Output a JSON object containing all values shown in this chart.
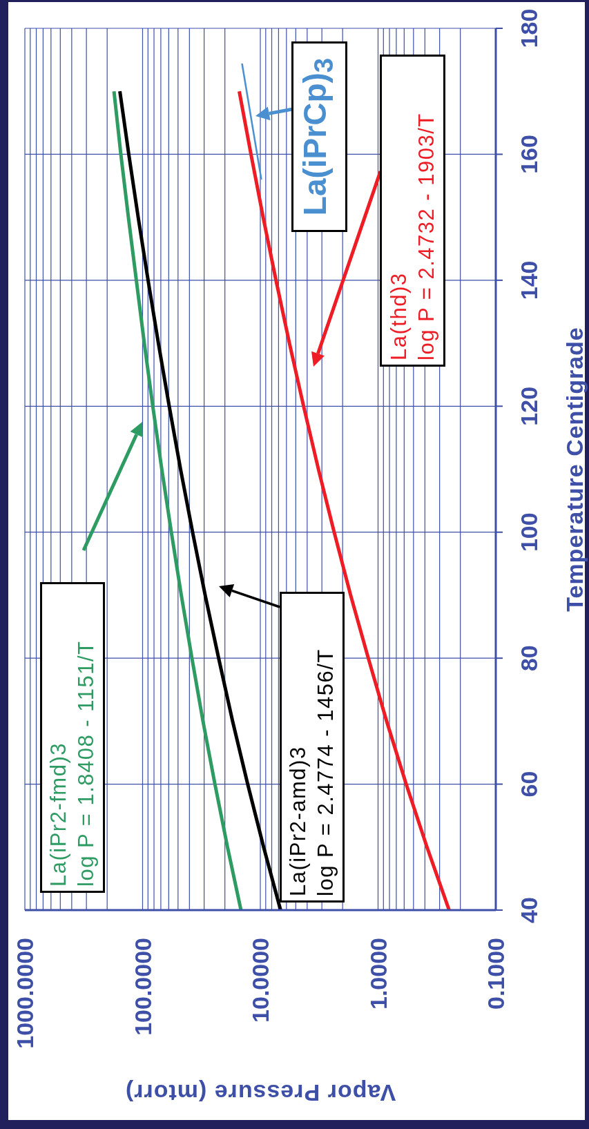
{
  "chart_data": {
    "type": "line",
    "xlabel": "Vapor Pressure (mtorr)",
    "ylabel": "Temperature Centigrade",
    "xlim": [
      1000,
      0.1
    ],
    "xticks": [
      {
        "value": 1000,
        "label": "1000.0000"
      },
      {
        "value": 100,
        "label": "100.0000"
      },
      {
        "value": 10,
        "label": "10.0000"
      },
      {
        "value": 1,
        "label": "1.0000"
      },
      {
        "value": 0.1,
        "label": "0.1000"
      }
    ],
    "ylim": [
      40,
      180
    ],
    "yticks": [
      40,
      60,
      80,
      100,
      120,
      140,
      160,
      180
    ],
    "log": "x",
    "grid": true,
    "marker": "none",
    "series": [
      {
        "name": "La(iPr2-fmd)3",
        "color": "#2e9b62",
        "x": [
          14.6,
          19.0,
          24.3,
          30.7,
          38.1,
          46.9,
          57.0,
          68.7,
          81.9,
          96.7,
          113,
          132,
          153,
          175
        ],
        "values": [
          40,
          50,
          60,
          70,
          80,
          90,
          100,
          110,
          120,
          130,
          140,
          150,
          160,
          170
        ]
      },
      {
        "name": "La(iPr2-amd)3",
        "color": "#000000",
        "x": [
          6.73,
          9.37,
          12.8,
          17.2,
          22.6,
          29.4,
          37.6,
          47.6,
          59.4,
          73.4,
          89.8,
          109,
          131,
          156
        ],
        "values": [
          40,
          50,
          60,
          70,
          80,
          90,
          100,
          110,
          120,
          130,
          140,
          150,
          160,
          170
        ]
      },
      {
        "name": "La(thd)3",
        "color": "#ee1c25",
        "x": [
          0.249,
          0.384,
          0.577,
          0.846,
          1.21,
          1.71,
          2.36,
          3.21,
          4.29,
          5.66,
          7.36,
          9.46,
          12.0,
          15.1
        ],
        "values": [
          40,
          50,
          60,
          70,
          80,
          90,
          100,
          110,
          120,
          130,
          140,
          150,
          160,
          170
        ]
      },
      {
        "name": "La(iPrCp)$_{3}$",
        "color": "#4a8fd0",
        "x": [
          9.8,
          14.3
        ],
        "values": [
          156.0,
          174.4
        ]
      }
    ],
    "annotations": [
      "log P = 1.8408 - 1151/T",
      "log P = 2.4774 - 1456/T",
      "log P = 2.4732 - 1903/T"
    ]
  }
}
